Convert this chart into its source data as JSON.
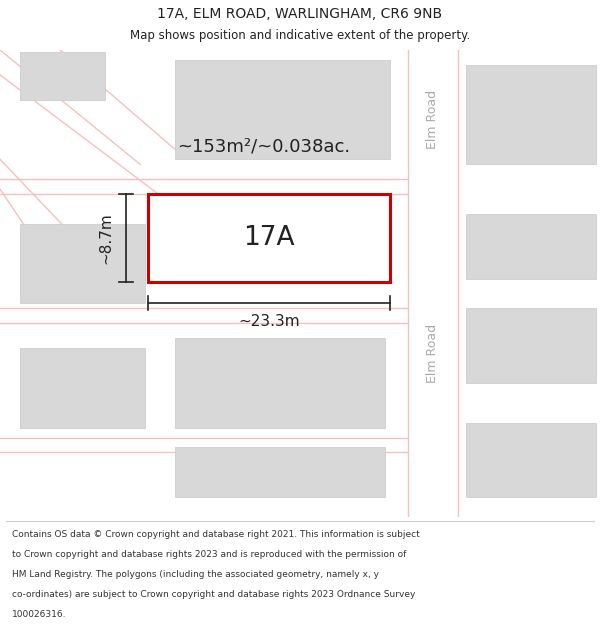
{
  "title": "17A, ELM ROAD, WARLINGHAM, CR6 9NB",
  "subtitle": "Map shows position and indicative extent of the property.",
  "map_bg": "#f2f2f2",
  "road_color": "#f5c0c0",
  "road_edge_color": "#e8a0a0",
  "building_color": "#d8d8d8",
  "building_edge": "#c8c8c8",
  "highlight_color": "#cc0000",
  "text_color": "#222222",
  "road_label_color": "#aaaaaa",
  "area_text": "~153m²/~0.038ac.",
  "width_text": "~23.3m",
  "height_text": "~8.7m",
  "property_label": "17A",
  "elm_road_label": "Elm Road",
  "footer_lines": [
    "Contains OS data © Crown copyright and database right 2021. This information is subject",
    "to Crown copyright and database rights 2023 and is reproduced with the permission of",
    "HM Land Registry. The polygons (including the associated geometry, namely x, y",
    "co-ordinates) are subject to Crown copyright and database rights 2023 Ordnance Survey",
    "100026316."
  ]
}
